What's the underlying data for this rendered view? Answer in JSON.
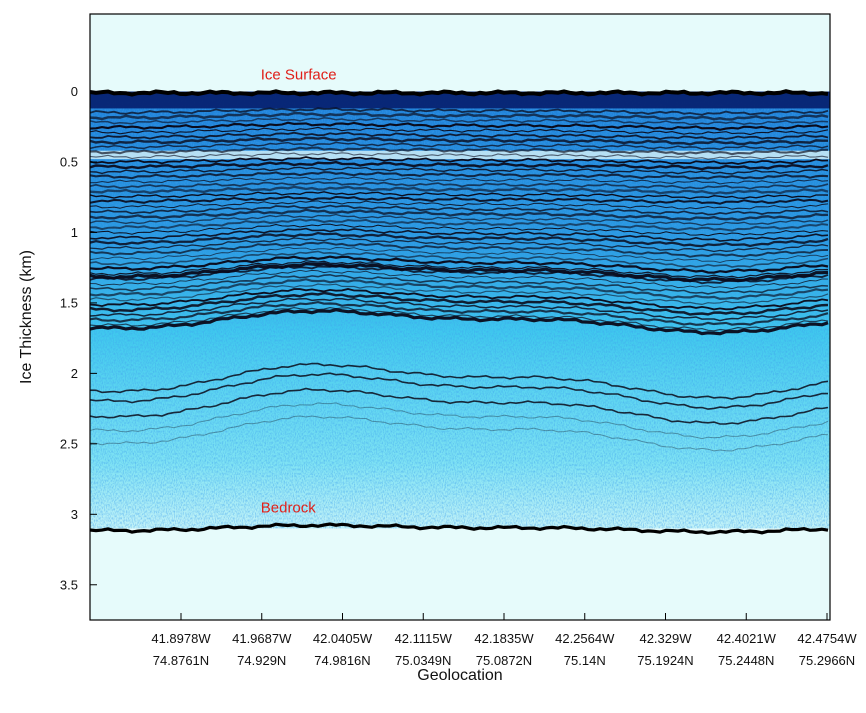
{
  "chart_data": {
    "type": "heatmap",
    "xlabel": "Geolocation",
    "ylabel": "Ice Thickness (km)",
    "ylim": [
      -0.55,
      3.75
    ],
    "y_inverted": true,
    "y_ticks": [
      {
        "value": 0,
        "label": "0"
      },
      {
        "value": 0.5,
        "label": "0.5"
      },
      {
        "value": 1,
        "label": "1"
      },
      {
        "value": 1.5,
        "label": "1.5"
      },
      {
        "value": 2,
        "label": "2"
      },
      {
        "value": 2.5,
        "label": "2.5"
      },
      {
        "value": 3,
        "label": "3"
      },
      {
        "value": 3.5,
        "label": "3.5"
      }
    ],
    "x_ticks": [
      {
        "lon": "41.8978W",
        "lat": "74.8761N"
      },
      {
        "lon": "41.9687W",
        "lat": "74.929N"
      },
      {
        "lon": "42.0405W",
        "lat": "74.9816N"
      },
      {
        "lon": "42.1115W",
        "lat": "75.0349N"
      },
      {
        "lon": "42.1835W",
        "lat": "75.0872N"
      },
      {
        "lon": "42.2564W",
        "lat": "75.14N"
      },
      {
        "lon": "42.329W",
        "lat": "75.1924N"
      },
      {
        "lon": "42.4021W",
        "lat": "75.2448N"
      },
      {
        "lon": "42.4754W",
        "lat": "75.2966N"
      }
    ],
    "annotations": [
      {
        "text": "Ice Surface",
        "depth": -0.12,
        "x_index": 1,
        "color": "#e0201a"
      },
      {
        "text": "Bedrock",
        "depth": 2.95,
        "x_index": 1,
        "color": "#e0201a"
      }
    ],
    "ice_surface_depth": 0.0,
    "bedrock_depth": 3.1,
    "grid": false,
    "colors": {
      "background": "#e6fbfb",
      "ice_light": "#3fc9ee",
      "ice_dark": "#061d6b",
      "layer_line": "#0a0a1a",
      "axes": "#000000"
    }
  }
}
